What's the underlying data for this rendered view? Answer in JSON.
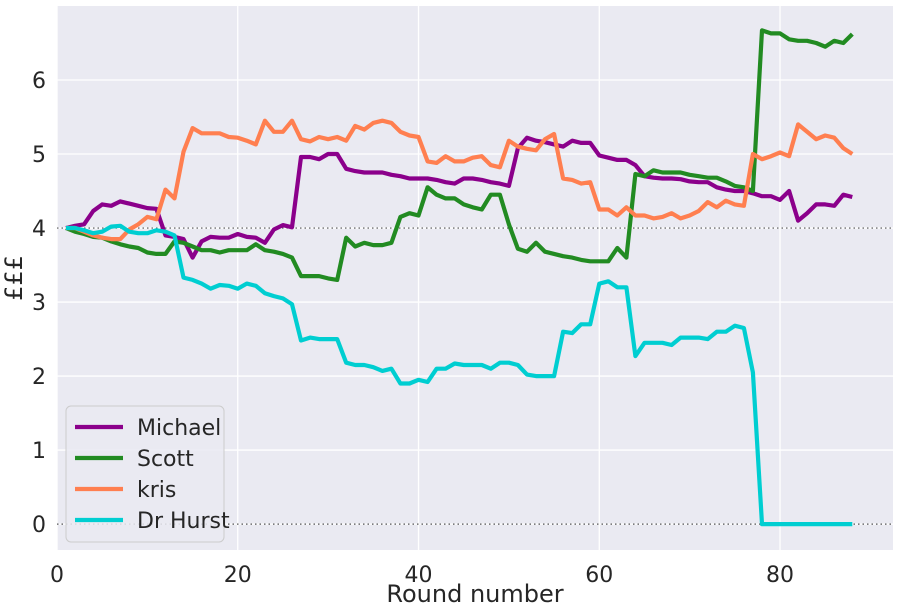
{
  "chart_data": {
    "type": "line",
    "title": "",
    "xlabel": "Round number",
    "ylabel": "£££",
    "xlim": [
      0,
      92.5
    ],
    "ylim": [
      -0.35,
      7.0
    ],
    "xticks": [
      0,
      20,
      40,
      60,
      80
    ],
    "yticks": [
      0,
      1,
      2,
      3,
      4,
      5,
      6
    ],
    "reference_lines": [
      4,
      0
    ],
    "grid": true,
    "legend_position": "bottom-left",
    "background_color": "#eaeaf2",
    "series": [
      {
        "name": "Michael",
        "color": "#8b008b",
        "x": [
          1,
          2,
          3,
          4,
          5,
          6,
          7,
          8,
          9,
          10,
          11,
          12,
          13,
          14,
          15,
          16,
          17,
          18,
          19,
          20,
          21,
          22,
          23,
          24,
          25,
          26,
          27,
          28,
          29,
          30,
          31,
          32,
          33,
          34,
          35,
          36,
          37,
          38,
          39,
          40,
          41,
          42,
          43,
          44,
          45,
          46,
          47,
          48,
          49,
          50,
          51,
          52,
          53,
          54,
          55,
          56,
          57,
          58,
          59,
          60,
          61,
          62,
          63,
          64,
          65,
          66,
          67,
          68,
          69,
          70,
          71,
          72,
          73,
          74,
          75,
          76,
          77,
          78,
          79,
          80,
          81,
          82,
          83,
          84,
          85,
          86,
          87,
          88
        ],
        "y": [
          4.0,
          4.03,
          4.05,
          4.23,
          4.32,
          4.3,
          4.36,
          4.33,
          4.3,
          4.27,
          4.26,
          3.9,
          3.88,
          3.85,
          3.6,
          3.82,
          3.88,
          3.87,
          3.87,
          3.92,
          3.88,
          3.87,
          3.8,
          3.98,
          4.04,
          4.01,
          4.96,
          4.96,
          4.93,
          5.0,
          5.0,
          4.8,
          4.77,
          4.75,
          4.75,
          4.75,
          4.72,
          4.7,
          4.67,
          4.67,
          4.67,
          4.65,
          4.62,
          4.6,
          4.67,
          4.67,
          4.65,
          4.62,
          4.6,
          4.57,
          5.08,
          5.22,
          5.18,
          5.16,
          5.13,
          5.1,
          5.18,
          5.15,
          5.15,
          4.98,
          4.95,
          4.92,
          4.92,
          4.85,
          4.7,
          4.68,
          4.67,
          4.67,
          4.66,
          4.63,
          4.62,
          4.62,
          4.55,
          4.52,
          4.5,
          4.5,
          4.47,
          4.43,
          4.43,
          4.38,
          4.5,
          4.1,
          4.2,
          4.32,
          4.32,
          4.3,
          4.45,
          4.42
        ]
      },
      {
        "name": "Scott",
        "color": "#228b22",
        "x": [
          1,
          2,
          3,
          4,
          5,
          6,
          7,
          8,
          9,
          10,
          11,
          12,
          13,
          14,
          15,
          16,
          17,
          18,
          19,
          20,
          21,
          22,
          23,
          24,
          25,
          26,
          27,
          28,
          29,
          30,
          31,
          32,
          33,
          34,
          35,
          36,
          37,
          38,
          39,
          40,
          41,
          42,
          43,
          44,
          45,
          46,
          47,
          48,
          49,
          50,
          51,
          52,
          53,
          54,
          55,
          56,
          57,
          58,
          59,
          60,
          61,
          62,
          63,
          64,
          65,
          66,
          67,
          68,
          69,
          70,
          71,
          72,
          73,
          74,
          75,
          76,
          77,
          78,
          79,
          80,
          81,
          82,
          83,
          84,
          85,
          86,
          87,
          88
        ],
        "y": [
          4.0,
          3.95,
          3.92,
          3.88,
          3.87,
          3.82,
          3.78,
          3.75,
          3.73,
          3.67,
          3.65,
          3.65,
          3.82,
          3.8,
          3.75,
          3.7,
          3.7,
          3.67,
          3.7,
          3.7,
          3.7,
          3.78,
          3.7,
          3.68,
          3.65,
          3.6,
          3.35,
          3.35,
          3.35,
          3.32,
          3.3,
          3.87,
          3.75,
          3.8,
          3.77,
          3.77,
          3.8,
          4.15,
          4.2,
          4.17,
          4.55,
          4.45,
          4.4,
          4.4,
          4.32,
          4.28,
          4.25,
          4.45,
          4.45,
          4.05,
          3.72,
          3.68,
          3.8,
          3.68,
          3.65,
          3.62,
          3.6,
          3.57,
          3.55,
          3.55,
          3.55,
          3.73,
          3.6,
          4.73,
          4.7,
          4.78,
          4.75,
          4.75,
          4.75,
          4.72,
          4.7,
          4.68,
          4.68,
          4.63,
          4.57,
          4.55,
          4.5,
          6.67,
          6.63,
          6.63,
          6.55,
          6.53,
          6.53,
          6.5,
          6.45,
          6.53,
          6.5,
          6.62
        ]
      },
      {
        "name": "kris",
        "color": "#ff7f50",
        "x": [
          1,
          2,
          3,
          4,
          5,
          6,
          7,
          8,
          9,
          10,
          11,
          12,
          13,
          14,
          15,
          16,
          17,
          18,
          19,
          20,
          21,
          22,
          23,
          24,
          25,
          26,
          27,
          28,
          29,
          30,
          31,
          32,
          33,
          34,
          35,
          36,
          37,
          38,
          39,
          40,
          41,
          42,
          43,
          44,
          45,
          46,
          47,
          48,
          49,
          50,
          51,
          52,
          53,
          54,
          55,
          56,
          57,
          58,
          59,
          60,
          61,
          62,
          63,
          64,
          65,
          66,
          67,
          68,
          69,
          70,
          71,
          72,
          73,
          74,
          75,
          76,
          77,
          78,
          79,
          80,
          81,
          82,
          83,
          84,
          85,
          86,
          87,
          88
        ],
        "y": [
          4.0,
          4.0,
          3.95,
          3.9,
          3.87,
          3.85,
          3.85,
          3.98,
          4.05,
          4.15,
          4.12,
          4.52,
          4.4,
          5.03,
          5.35,
          5.28,
          5.28,
          5.28,
          5.23,
          5.22,
          5.18,
          5.13,
          5.45,
          5.3,
          5.3,
          5.45,
          5.2,
          5.17,
          5.23,
          5.2,
          5.23,
          5.18,
          5.38,
          5.33,
          5.42,
          5.45,
          5.42,
          5.3,
          5.25,
          5.23,
          4.9,
          4.88,
          4.97,
          4.9,
          4.9,
          4.95,
          4.97,
          4.85,
          4.82,
          5.18,
          5.1,
          5.07,
          5.05,
          5.2,
          5.27,
          4.67,
          4.65,
          4.6,
          4.62,
          4.25,
          4.25,
          4.17,
          4.28,
          4.17,
          4.17,
          4.13,
          4.15,
          4.2,
          4.13,
          4.17,
          4.23,
          4.35,
          4.28,
          4.37,
          4.32,
          4.3,
          5.0,
          4.93,
          4.97,
          5.02,
          4.97,
          5.4,
          5.3,
          5.2,
          5.25,
          5.22,
          5.08,
          5.0
        ]
      },
      {
        "name": "Dr Hurst",
        "color": "#00ced1",
        "x": [
          1,
          2,
          3,
          4,
          5,
          6,
          7,
          8,
          9,
          10,
          11,
          12,
          13,
          14,
          15,
          16,
          17,
          18,
          19,
          20,
          21,
          22,
          23,
          24,
          25,
          26,
          27,
          28,
          29,
          30,
          31,
          32,
          33,
          34,
          35,
          36,
          37,
          38,
          39,
          40,
          41,
          42,
          43,
          44,
          45,
          46,
          47,
          48,
          49,
          50,
          51,
          52,
          53,
          54,
          55,
          56,
          57,
          58,
          59,
          60,
          61,
          62,
          63,
          64,
          65,
          66,
          67,
          68,
          69,
          70,
          71,
          72,
          73,
          74,
          75,
          76,
          77,
          78,
          79,
          80,
          81,
          82,
          83,
          84,
          85,
          86,
          87,
          88
        ],
        "y": [
          4.0,
          4.0,
          3.97,
          3.93,
          3.95,
          4.02,
          4.03,
          3.95,
          3.93,
          3.93,
          3.97,
          3.95,
          3.9,
          3.33,
          3.3,
          3.25,
          3.18,
          3.23,
          3.22,
          3.18,
          3.25,
          3.22,
          3.12,
          3.08,
          3.05,
          2.97,
          2.48,
          2.52,
          2.5,
          2.5,
          2.5,
          2.18,
          2.15,
          2.15,
          2.12,
          2.07,
          2.1,
          1.9,
          1.9,
          1.95,
          1.92,
          2.1,
          2.1,
          2.17,
          2.15,
          2.15,
          2.15,
          2.1,
          2.18,
          2.18,
          2.15,
          2.02,
          2.0,
          2.0,
          2.0,
          2.6,
          2.58,
          2.7,
          2.7,
          3.25,
          3.28,
          3.2,
          3.2,
          2.27,
          2.45,
          2.45,
          2.45,
          2.42,
          2.52,
          2.52,
          2.52,
          2.5,
          2.6,
          2.6,
          2.68,
          2.65,
          2.05,
          0.0,
          0.0,
          0.0,
          0.0,
          0.0,
          0.0,
          0.0,
          0.0,
          0.0,
          0.0,
          0.0
        ]
      }
    ]
  }
}
